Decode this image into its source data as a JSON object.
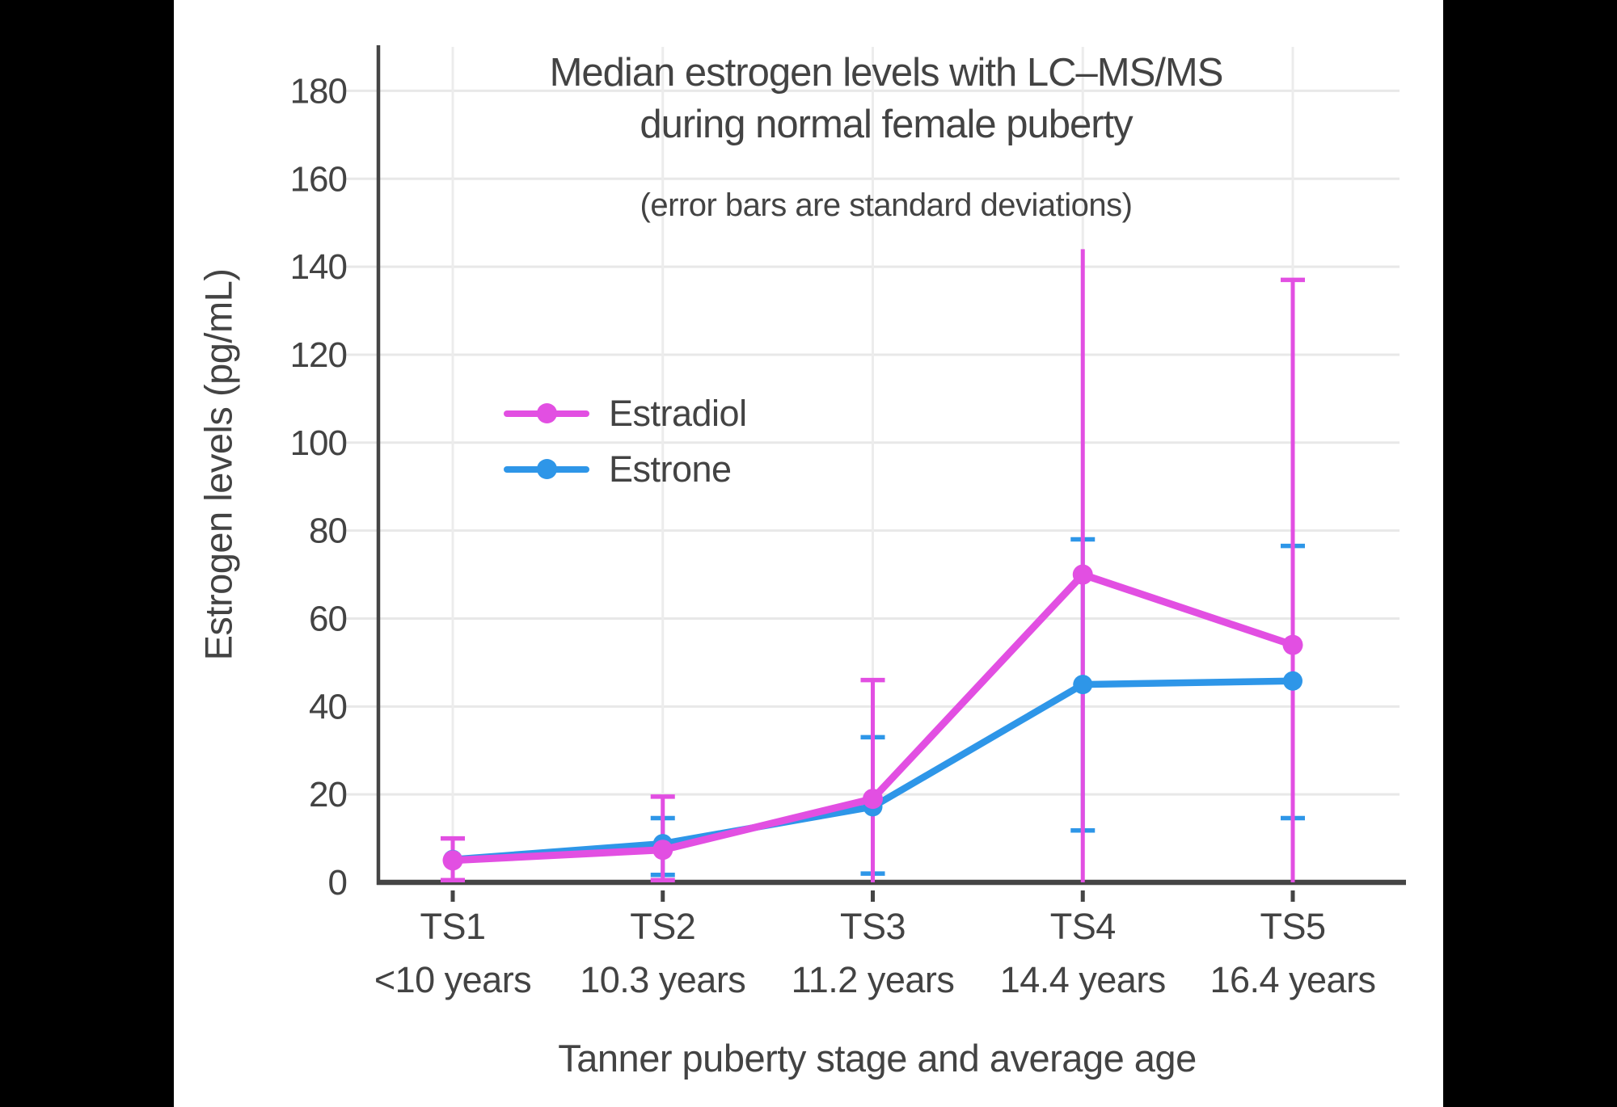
{
  "window": {
    "background": "#000000",
    "panel_background": "#ffffff",
    "text_color": "#434343"
  },
  "chart_data": {
    "type": "line",
    "title_line1": "Median estrogen levels with LC–MS/MS",
    "title_line2": "during normal female puberty",
    "subtitle": "(error bars are standard deviations)",
    "ylabel": "Estrogen levels (pg/mL)",
    "xlabel": "Tanner puberty stage and average age",
    "categories": [
      {
        "stage": "TS1",
        "age": "<10 years"
      },
      {
        "stage": "TS2",
        "age": "10.3 years"
      },
      {
        "stage": "TS3",
        "age": "11.2 years"
      },
      {
        "stage": "TS4",
        "age": "14.4 years"
      },
      {
        "stage": "TS5",
        "age": "16.4 years"
      }
    ],
    "yticks": [
      0,
      20,
      40,
      60,
      80,
      100,
      120,
      140,
      160,
      180
    ],
    "ylim": [
      0,
      190
    ],
    "grid": true,
    "legend_position": "inside-upper-left",
    "colors": {
      "axis": "#454545",
      "gridline": "#e8e8e8",
      "tick_label": "#434343"
    },
    "series": [
      {
        "name": "Estradiol",
        "color": "#E24FE2",
        "values": [
          5,
          7.4,
          19,
          70,
          54
        ],
        "error_low": [
          0.5,
          0.5,
          0,
          0,
          0
        ],
        "error_high": [
          10,
          19.5,
          46,
          144,
          137
        ],
        "cap_low": [
          true,
          true,
          false,
          false,
          false
        ],
        "cap_high": [
          true,
          true,
          true,
          false,
          true
        ]
      },
      {
        "name": "Estrone",
        "color": "#2E96E8",
        "values": [
          5.2,
          8.8,
          17.2,
          45,
          45.8
        ],
        "error_low": [
          null,
          1.7,
          2,
          11.8,
          14.6
        ],
        "error_high": [
          null,
          14.6,
          33,
          78,
          76.5
        ],
        "cap_low": [
          false,
          true,
          true,
          true,
          true
        ],
        "cap_high": [
          false,
          true,
          true,
          true,
          true
        ]
      }
    ]
  }
}
